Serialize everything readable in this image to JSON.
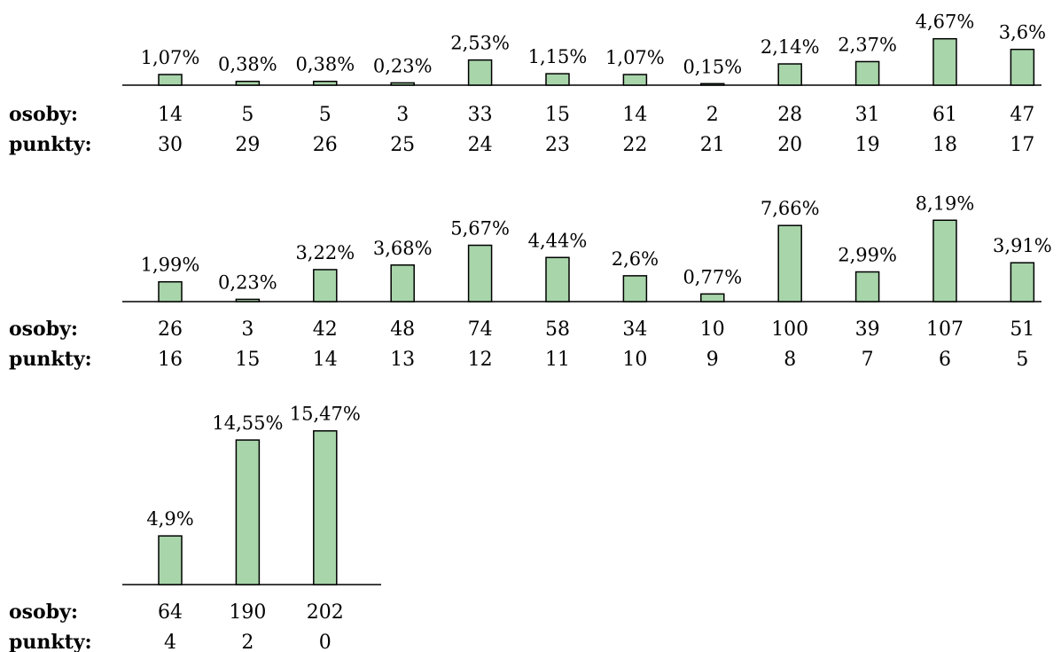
{
  "labels": {
    "osoby": "osoby:",
    "punkty": "punkty:"
  },
  "colors": {
    "bar_fill": "#a8d5aa",
    "bar_stroke": "#000000"
  },
  "chart_data": {
    "type": "bar",
    "title": "",
    "xlabel": "",
    "ylabel": "",
    "ylim": [
      0,
      16
    ],
    "grid": false,
    "units": "%",
    "rows": [
      {
        "punkty": [
          30,
          29,
          26,
          25,
          24,
          23,
          22,
          21,
          20,
          19,
          18,
          17
        ],
        "osoby": [
          14,
          5,
          5,
          3,
          33,
          15,
          14,
          2,
          28,
          31,
          61,
          47
        ],
        "percent": [
          1.07,
          0.38,
          0.38,
          0.23,
          2.53,
          1.15,
          1.07,
          0.15,
          2.14,
          2.37,
          4.67,
          3.6
        ],
        "percent_labels": [
          "1,07%",
          "0,38%",
          "0,38%",
          "0,23%",
          "2,53%",
          "1,15%",
          "1,07%",
          "0,15%",
          "2,14%",
          "2,37%",
          "4,67%",
          "3,6%"
        ]
      },
      {
        "punkty": [
          16,
          15,
          14,
          13,
          12,
          11,
          10,
          9,
          8,
          7,
          6,
          5
        ],
        "osoby": [
          26,
          3,
          42,
          48,
          74,
          58,
          34,
          10,
          100,
          39,
          107,
          51
        ],
        "percent": [
          1.99,
          0.23,
          3.22,
          3.68,
          5.67,
          4.44,
          2.6,
          0.77,
          7.66,
          2.99,
          8.19,
          3.91
        ],
        "percent_labels": [
          "1,99%",
          "0,23%",
          "3,22%",
          "3,68%",
          "5,67%",
          "4,44%",
          "2,6%",
          "0,77%",
          "7,66%",
          "2,99%",
          "8,19%",
          "3,91%"
        ]
      },
      {
        "punkty": [
          4,
          2,
          0
        ],
        "osoby": [
          64,
          190,
          202
        ],
        "percent": [
          4.9,
          14.55,
          15.47
        ],
        "percent_labels": [
          "4,9%",
          "14,55%",
          "15,47%"
        ]
      }
    ]
  }
}
